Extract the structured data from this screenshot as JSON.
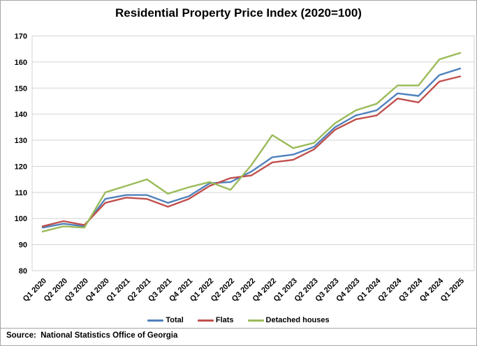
{
  "source": {
    "text": "Source:  National Statistics Office of Georgia"
  },
  "chart_data": {
    "type": "line",
    "title": "Residential Property Price Index (2020=100)",
    "xlabel": "",
    "ylabel": "",
    "ylim": [
      80,
      170
    ],
    "ytick_step": 10,
    "yticks": [
      80,
      90,
      100,
      110,
      120,
      130,
      140,
      150,
      160,
      170
    ],
    "grid": true,
    "legend_position": "bottom",
    "gridline_color": "#d3d3d3",
    "categories": [
      "Q1 2020",
      "Q2 2020",
      "Q3 2020",
      "Q4 2020",
      "Q1 2021",
      "Q2 2021",
      "Q3 2021",
      "Q4 2021",
      "Q1 2022",
      "Q2 2022",
      "Q3 2022",
      "Q4 2022",
      "Q1 2023",
      "Q2 2023",
      "Q3 2023",
      "Q4 2023",
      "Q1 2024",
      "Q2 2024",
      "Q3 2024",
      "Q4 2024",
      "Q1 2025"
    ],
    "series": [
      {
        "name": "Total",
        "color": "#4f81bd",
        "values": [
          96.5,
          98,
          97,
          107.5,
          109,
          109,
          106,
          108.5,
          113.5,
          114,
          118,
          123.5,
          124.5,
          127.5,
          135,
          139.5,
          141.5,
          148,
          147,
          155,
          157.5
        ]
      },
      {
        "name": "Flats",
        "color": "#c0504d",
        "values": [
          97,
          99,
          97.5,
          106,
          108,
          107.5,
          104.5,
          107.5,
          112.5,
          115.5,
          116.5,
          121.5,
          122.5,
          126.5,
          134,
          138,
          139.5,
          146,
          144.5,
          152.5,
          154.5
        ]
      },
      {
        "name": "Detached houses",
        "color": "#9bbb59",
        "values": [
          95,
          97,
          96.5,
          110,
          112.5,
          115,
          109.5,
          112,
          114,
          111,
          120.5,
          132,
          127,
          129,
          136.5,
          141.5,
          144,
          151,
          151,
          161,
          163.5
        ]
      }
    ]
  }
}
